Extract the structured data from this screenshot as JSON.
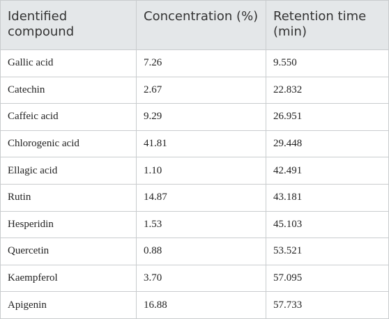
{
  "table": {
    "headers": [
      "Identified compound",
      "Concentration (%)",
      "Retention time (min)"
    ],
    "rows": [
      [
        "Gallic acid",
        "7.26",
        "9.550"
      ],
      [
        "Catechin",
        "2.67",
        "22.832"
      ],
      [
        "Caffeic acid",
        "9.29",
        "26.951"
      ],
      [
        "Chlorogenic acid",
        "41.81",
        "29.448"
      ],
      [
        "Ellagic acid",
        "1.10",
        "42.491"
      ],
      [
        "Rutin",
        "14.87",
        "43.181"
      ],
      [
        "Hesperidin",
        "1.53",
        "45.103"
      ],
      [
        "Quercetin",
        "0.88",
        "53.521"
      ],
      [
        "Kaempferol",
        "3.70",
        "57.095"
      ],
      [
        "Apigenin",
        "16.88",
        "57.733"
      ]
    ]
  }
}
